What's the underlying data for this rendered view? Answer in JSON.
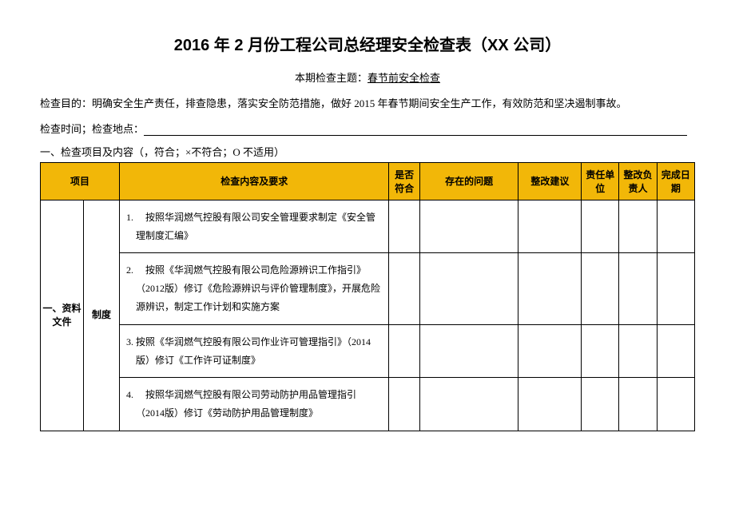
{
  "title": "2016 年 2 月份工程公司总经理安全检查表（XX 公司）",
  "subtitle_prefix": "本期检查主题：",
  "subtitle_theme": "春节前安全检查",
  "purpose": "检查目的：明确安全生产责任，排查隐患，落实安全防范措施，做好 2015 年春节期间安全生产工作，有效防范和坚决遏制事故。",
  "time_label": "检查时间；检查地点：",
  "section_head": "一、检查项目及内容（，符合；×不符合；O 不适用）",
  "headers": {
    "item": "项目",
    "content": "检查内容及要求",
    "conform": "是否符合",
    "problem": "存在的问题",
    "suggestion": "整改建议",
    "unit": "责任单位",
    "responsible": "整改负责人",
    "done": "完成日期"
  },
  "category_label": "一、资料文件",
  "subcategory_label": "制度",
  "rows": [
    "　按照华润燃气控股有限公司安全管理要求制定《安全管理制度汇编》",
    "　按照《华润燃气控股有限公司危险源辨识工作指引》（2012版）修订《危险源辨识与评价管理制度》，开展危险源辨识，制定工作计划和实施方案",
    "按照《华润燃气控股有限公司作业许可管理指引》（2014 版）修订《工作许可证制度》",
    "　按照华润燃气控股有限公司劳动防护用品管理指引（2014版）修订《劳动防护用品管理制度》"
  ],
  "colors": {
    "header_bg": "#f2b708",
    "border": "#000000",
    "text": "#000000",
    "background": "#ffffff"
  }
}
